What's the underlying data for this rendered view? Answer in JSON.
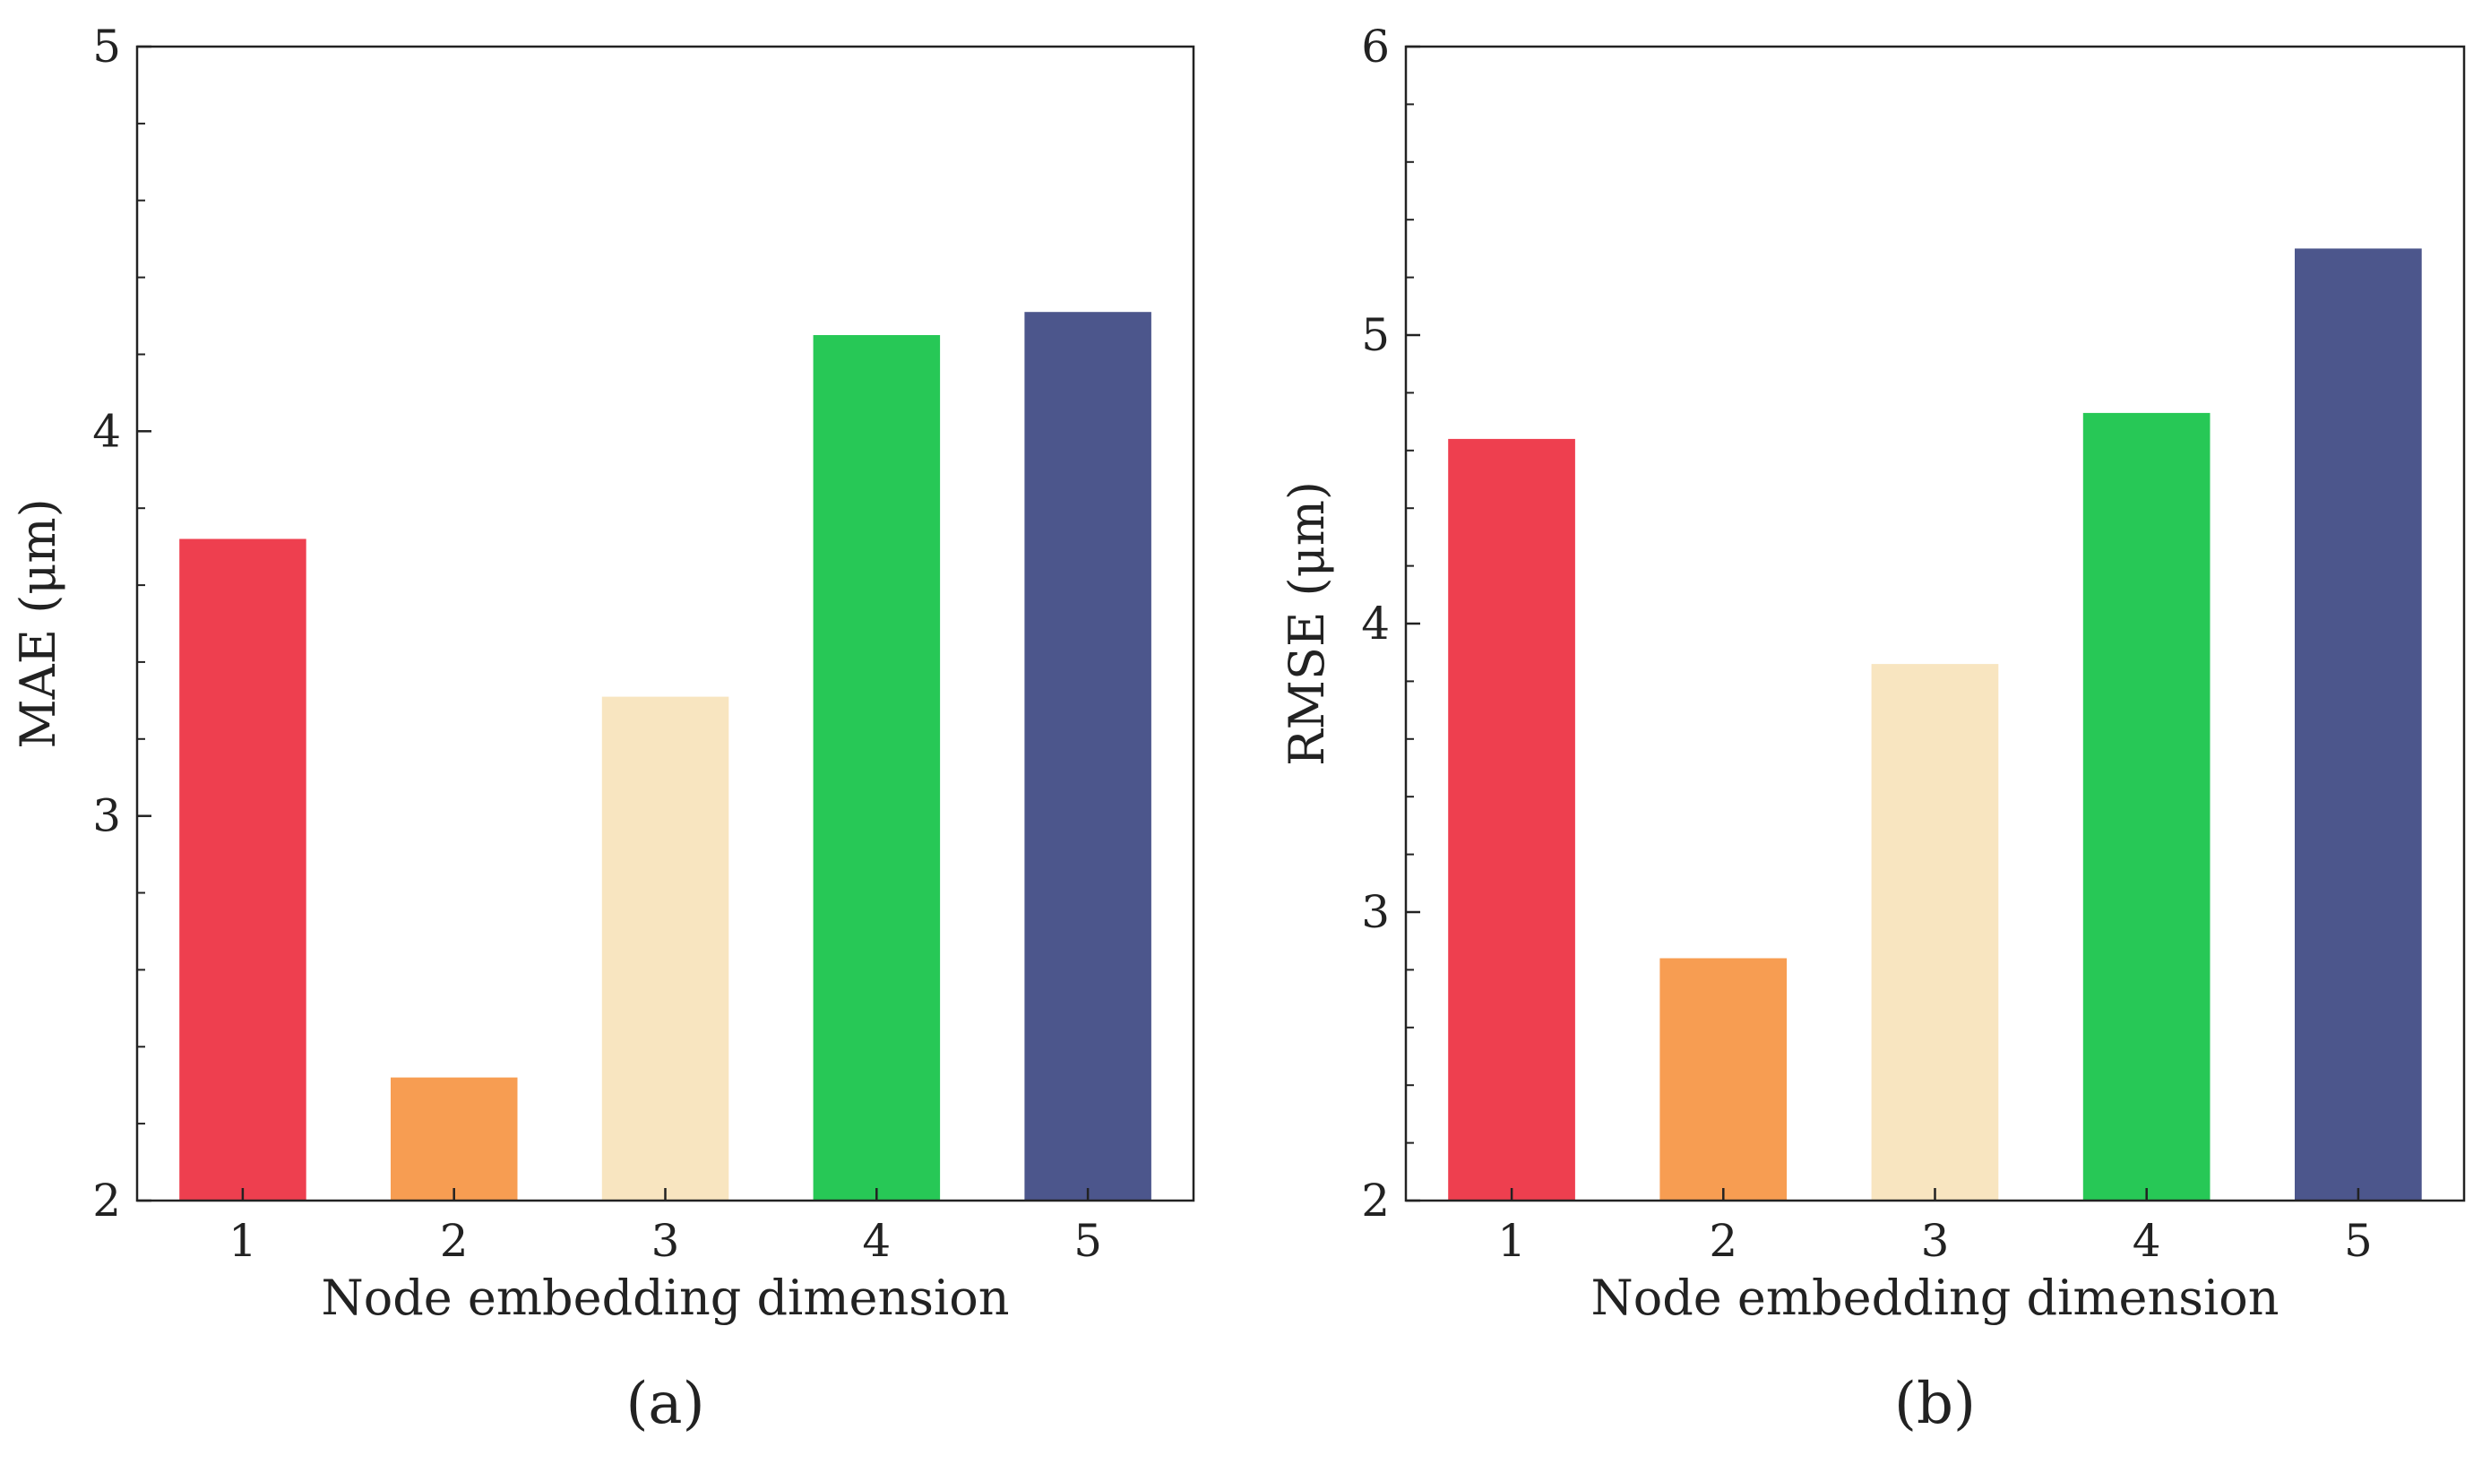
{
  "chart_data": [
    {
      "type": "bar",
      "panel_label": "(a)",
      "categories": [
        "1",
        "2",
        "3",
        "4",
        "5"
      ],
      "values": [
        3.72,
        2.32,
        3.31,
        4.25,
        4.31
      ],
      "colors": [
        "#ee3f4f",
        "#f79d52",
        "#f8e5c0",
        "#27c856",
        "#4c568c"
      ],
      "xlabel": "Node embedding dimension",
      "ylabel": "MAE (μm)",
      "ylim": [
        2,
        5
      ],
      "yticks": [
        "2",
        "3",
        "4",
        "5"
      ],
      "minor_step": 0.2,
      "grid": false
    },
    {
      "type": "bar",
      "panel_label": "(b)",
      "categories": [
        "1",
        "2",
        "3",
        "4",
        "5"
      ],
      "values": [
        4.64,
        2.84,
        3.86,
        4.73,
        5.3
      ],
      "colors": [
        "#ee3f4f",
        "#f79d52",
        "#f8e5c0",
        "#27c856",
        "#4c568c"
      ],
      "xlabel": "Node embedding dimension",
      "ylabel": "RMSE (μm)",
      "ylim": [
        2,
        6
      ],
      "yticks": [
        "2",
        "3",
        "4",
        "5",
        "6"
      ],
      "minor_step": 0.2,
      "grid": false
    }
  ]
}
